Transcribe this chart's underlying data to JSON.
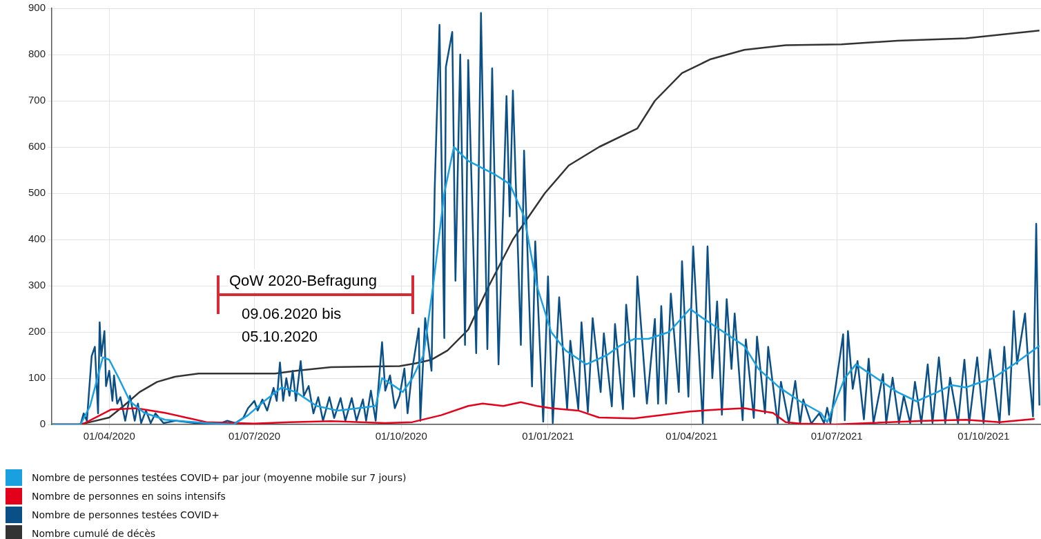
{
  "chart_data": {
    "type": "line",
    "xlim": [
      "2020-02-25",
      "2021-11-06"
    ],
    "xticks": [
      {
        "value": "2020-04-01",
        "label": "01/04/2020"
      },
      {
        "value": "2020-07-01",
        "label": "01/07/2020"
      },
      {
        "value": "2020-10-01",
        "label": "01/10/2020"
      },
      {
        "value": "2021-01-01",
        "label": "01/01/2021"
      },
      {
        "value": "2021-04-01",
        "label": "01/04/2021"
      },
      {
        "value": "2021-07-01",
        "label": "01/07/2021"
      },
      {
        "value": "2021-10-01",
        "label": "01/10/2021"
      }
    ],
    "ylim": [
      0,
      900
    ],
    "yticks": [
      0,
      100,
      200,
      300,
      400,
      500,
      600,
      700,
      800,
      900
    ],
    "grid": true,
    "legend": "bottom left",
    "marker": "none",
    "line_style": "solid",
    "annotations": [
      "QoW 2020-Befragung",
      "09.06.2020 bis\n05.10.2020"
    ],
    "series": [
      {
        "name": "Nombre de personnes testées COVID+ par jour (moyenne mobile sur 7 jours)",
        "color": "#1a9fe0",
        "x": [
          "2020-02-25",
          "2020-03-14",
          "2020-03-20",
          "2020-03-28",
          "2020-04-01",
          "2020-04-07",
          "2020-04-14",
          "2020-04-23",
          "2020-05-06",
          "2020-06-01",
          "2020-06-18",
          "2020-06-27",
          "2020-07-07",
          "2020-07-18",
          "2020-07-27",
          "2020-08-09",
          "2020-08-22",
          "2020-09-04",
          "2020-09-15",
          "2020-09-19",
          "2020-09-28",
          "2020-10-02",
          "2020-10-08",
          "2020-10-15",
          "2020-10-21",
          "2020-10-28",
          "2020-11-03",
          "2020-11-12",
          "2020-11-29",
          "2020-12-08",
          "2020-12-17",
          "2020-12-25",
          "2021-01-03",
          "2021-01-12",
          "2021-01-25",
          "2021-02-07",
          "2021-02-15",
          "2021-02-24",
          "2021-03-05",
          "2021-03-18",
          "2021-03-31",
          "2021-04-08",
          "2021-04-21",
          "2021-05-04",
          "2021-05-13",
          "2021-05-26",
          "2021-06-08",
          "2021-06-21",
          "2021-06-25",
          "2021-07-06",
          "2021-07-13",
          "2021-07-26",
          "2021-08-08",
          "2021-08-20",
          "2021-09-02",
          "2021-09-11",
          "2021-09-20",
          "2021-09-28",
          "2021-10-07",
          "2021-10-20",
          "2021-11-05"
        ],
        "values": [
          0,
          0,
          40,
          145,
          140,
          100,
          50,
          25,
          10,
          3,
          0,
          20,
          50,
          80,
          70,
          40,
          30,
          35,
          40,
          100,
          80,
          70,
          100,
          150,
          300,
          500,
          600,
          570,
          540,
          520,
          450,
          300,
          200,
          160,
          130,
          150,
          170,
          185,
          185,
          200,
          250,
          230,
          200,
          170,
          120,
          80,
          50,
          25,
          5,
          100,
          130,
          100,
          70,
          50,
          70,
          85,
          80,
          90,
          100,
          130,
          170
        ]
      },
      {
        "name": "Nombre de personnes en soins intensifs",
        "color": "#e3001b",
        "x": [
          "2020-02-25",
          "2020-03-15",
          "2020-04-02",
          "2020-04-18",
          "2020-05-06",
          "2020-05-19",
          "2020-06-01",
          "2020-07-01",
          "2020-07-23",
          "2020-08-18",
          "2020-09-21",
          "2020-10-08",
          "2020-10-26",
          "2020-11-12",
          "2020-11-21",
          "2020-12-04",
          "2020-12-15",
          "2020-12-25",
          "2021-01-03",
          "2021-01-20",
          "2021-02-02",
          "2021-02-24",
          "2021-03-13",
          "2021-03-31",
          "2021-04-17",
          "2021-05-04",
          "2021-05-13",
          "2021-05-22",
          "2021-05-30",
          "2021-06-08",
          "2021-06-30",
          "2021-07-21",
          "2021-08-25",
          "2021-09-20",
          "2021-10-11",
          "2021-11-02"
        ],
        "values": [
          0,
          0,
          32,
          35,
          25,
          15,
          5,
          2,
          5,
          7,
          3,
          5,
          20,
          40,
          45,
          40,
          48,
          40,
          35,
          30,
          15,
          13,
          20,
          28,
          32,
          35,
          30,
          25,
          5,
          2,
          0,
          3,
          8,
          10,
          5,
          12
        ]
      },
      {
        "name": "Nombre de personnes testées COVID+",
        "color": "#0a4f85",
        "x": [
          "2020-02-25",
          "2020-03-14",
          "2020-03-16",
          "2020-03-18",
          "2020-03-21",
          "2020-03-23",
          "2020-03-25",
          "2020-03-26",
          "2020-03-27",
          "2020-03-28",
          "2020-03-29",
          "2020-03-30",
          "2020-04-01",
          "2020-04-03",
          "2020-04-04",
          "2020-04-06",
          "2020-04-08",
          "2020-04-11",
          "2020-04-14",
          "2020-04-17",
          "2020-04-19",
          "2020-04-21",
          "2020-04-24",
          "2020-04-27",
          "2020-04-30",
          "2020-05-05",
          "2020-05-13",
          "2020-05-25",
          "2020-06-10",
          "2020-06-14",
          "2020-06-19",
          "2020-06-24",
          "2020-06-27",
          "2020-07-01",
          "2020-07-03",
          "2020-07-06",
          "2020-07-09",
          "2020-07-13",
          "2020-07-15",
          "2020-07-17",
          "2020-07-19",
          "2020-07-21",
          "2020-07-23",
          "2020-07-25",
          "2020-07-27",
          "2020-07-30",
          "2020-08-01",
          "2020-08-04",
          "2020-08-07",
          "2020-08-10",
          "2020-08-13",
          "2020-08-17",
          "2020-08-20",
          "2020-08-24",
          "2020-08-27",
          "2020-08-31",
          "2020-09-03",
          "2020-09-07",
          "2020-09-09",
          "2020-09-12",
          "2020-09-15",
          "2020-09-19",
          "2020-09-21",
          "2020-09-24",
          "2020-09-27",
          "2020-09-30",
          "2020-10-03",
          "2020-10-05",
          "2020-10-08",
          "2020-10-12",
          "2020-10-13",
          "2020-10-16",
          "2020-10-20",
          "2020-10-22",
          "2020-10-25",
          "2020-10-28",
          "2020-10-29",
          "2020-11-02",
          "2020-11-04",
          "2020-11-07",
          "2020-11-10",
          "2020-11-12",
          "2020-11-17",
          "2020-11-20",
          "2020-11-24",
          "2020-11-27",
          "2020-12-01",
          "2020-12-06",
          "2020-12-08",
          "2020-12-10",
          "2020-12-15",
          "2020-12-17",
          "2020-12-22",
          "2020-12-24",
          "2020-12-29",
          "2021-01-01",
          "2021-01-04",
          "2021-01-08",
          "2021-01-13",
          "2021-01-15",
          "2021-01-20",
          "2021-01-22",
          "2021-01-26",
          "2021-01-29",
          "2021-02-03",
          "2021-02-05",
          "2021-02-10",
          "2021-02-12",
          "2021-02-17",
          "2021-02-19",
          "2021-02-24",
          "2021-02-26",
          "2021-03-04",
          "2021-03-09",
          "2021-03-11",
          "2021-03-13",
          "2021-03-16",
          "2021-03-19",
          "2021-03-24",
          "2021-03-26",
          "2021-03-30",
          "2021-04-02",
          "2021-04-08",
          "2021-04-11",
          "2021-04-14",
          "2021-04-17",
          "2021-04-20",
          "2021-04-23",
          "2021-04-26",
          "2021-04-28",
          "2021-05-03",
          "2021-05-05",
          "2021-05-10",
          "2021-05-12",
          "2021-05-17",
          "2021-05-19",
          "2021-05-25",
          "2021-05-27",
          "2021-06-01",
          "2021-06-05",
          "2021-06-08",
          "2021-06-10",
          "2021-06-15",
          "2021-06-20",
          "2021-06-23",
          "2021-06-25",
          "2021-06-27",
          "2021-07-05",
          "2021-07-06",
          "2021-07-08",
          "2021-07-11",
          "2021-07-14",
          "2021-07-18",
          "2021-07-21",
          "2021-07-24",
          "2021-07-30",
          "2021-08-01",
          "2021-08-05",
          "2021-08-09",
          "2021-08-12",
          "2021-08-16",
          "2021-08-19",
          "2021-08-23",
          "2021-08-27",
          "2021-08-30",
          "2021-09-03",
          "2021-09-07",
          "2021-09-10",
          "2021-09-15",
          "2021-09-19",
          "2021-09-22",
          "2021-09-27",
          "2021-10-01",
          "2021-10-05",
          "2021-10-11",
          "2021-10-14",
          "2021-10-17",
          "2021-10-20",
          "2021-10-22",
          "2021-10-27",
          "2021-10-29",
          "2021-11-01",
          "2021-11-03",
          "2021-11-04",
          "2021-11-05"
        ],
        "values": [
          0,
          0,
          24,
          8,
          148,
          168,
          24,
          221,
          148,
          175,
          202,
          83,
          116,
          51,
          106,
          45,
          59,
          8,
          62,
          8,
          45,
          3,
          30,
          3,
          24,
          3,
          8,
          3,
          3,
          8,
          3,
          14,
          35,
          51,
          30,
          54,
          30,
          79,
          51,
          134,
          51,
          100,
          62,
          116,
          51,
          137,
          62,
          83,
          24,
          59,
          8,
          59,
          14,
          57,
          8,
          57,
          8,
          54,
          8,
          73,
          8,
          178,
          73,
          106,
          35,
          62,
          121,
          24,
          121,
          208,
          8,
          230,
          116,
          510,
          864,
          187,
          773,
          849,
          311,
          800,
          172,
          788,
          154,
          890,
          163,
          770,
          130,
          710,
          450,
          722,
          172,
          592,
          82,
          396,
          6,
          320,
          3,
          275,
          33,
          181,
          33,
          221,
          27,
          230,
          70,
          197,
          39,
          217,
          33,
          259,
          60,
          320,
          45,
          228,
          45,
          256,
          45,
          283,
          70,
          353,
          60,
          385,
          3,
          385,
          100,
          266,
          21,
          271,
          120,
          240,
          9,
          184,
          14,
          190,
          24,
          168,
          2,
          92,
          3,
          94,
          2,
          54,
          2,
          24,
          3,
          36,
          3,
          195,
          9,
          202,
          77,
          137,
          11,
          142,
          3,
          109,
          3,
          101,
          3,
          62,
          3,
          92,
          3,
          130,
          3,
          145,
          3,
          101,
          3,
          140,
          3,
          145,
          3,
          162,
          3,
          168,
          21,
          245,
          131,
          240,
          131,
          17,
          434,
          222,
          41
        ]
      },
      {
        "name": "Nombre cumulé de décès",
        "color": "#333333",
        "x": [
          "2020-02-25",
          "2020-03-13",
          "2020-03-20",
          "2020-04-01",
          "2020-04-10",
          "2020-04-20",
          "2020-05-01",
          "2020-05-12",
          "2020-05-27",
          "2020-07-14",
          "2020-07-27",
          "2020-08-18",
          "2020-09-30",
          "2020-10-10",
          "2020-10-20",
          "2020-10-30",
          "2020-11-12",
          "2020-11-25",
          "2020-12-10",
          "2020-12-30",
          "2021-01-14",
          "2021-02-02",
          "2021-02-26",
          "2021-03-09",
          "2021-03-26",
          "2021-04-13",
          "2021-05-04",
          "2021-05-30",
          "2021-07-04",
          "2021-08-08",
          "2021-09-20",
          "2021-11-05"
        ],
        "values": [
          0,
          0,
          5,
          15,
          40,
          70,
          92,
          103,
          110,
          110,
          116,
          124,
          126,
          132,
          140,
          160,
          205,
          300,
          400,
          500,
          560,
          600,
          640,
          700,
          760,
          790,
          810,
          820,
          822,
          830,
          835,
          852
        ]
      }
    ]
  }
}
